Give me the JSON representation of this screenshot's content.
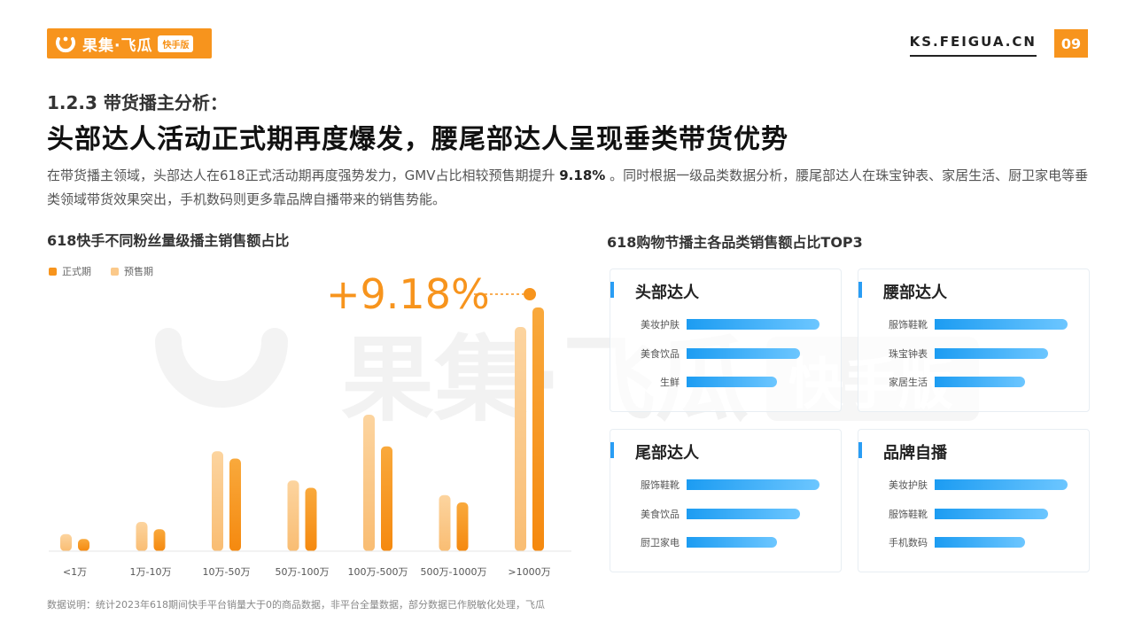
{
  "header": {
    "logo_text": "果集·飞瓜",
    "logo_badge": "快手版",
    "site": "KS.FEIGUA.CN",
    "page": "09"
  },
  "section": {
    "label": "1.2.3 带货播主分析：",
    "headline": "头部达人活动正式期再度爆发，腰尾部达人呈现垂类带货优势",
    "desc_part1": "在带货播主领域，头部达人在618正式活动期再度强势发力，GMV占比相较预售期提升",
    "desc_highlight": "9.18%",
    "desc_part2": "。同时根据一级品类数据分析，腰尾部达人在珠宝钟表、家居生活、厨卫家电等垂类领域带货效果突出，手机数码则更多靠品牌自播带来的销售势能。"
  },
  "chart_data": [
    {
      "type": "bar",
      "title": "618快手不同粉丝量级播主销售额占比",
      "categories": [
        "<1万",
        "1万-10万",
        "10万-50万",
        "50万-100万",
        "100万-500万",
        "500万-1000万",
        ">1000万"
      ],
      "series": [
        {
          "name": "正式期",
          "values": [
            5,
            9,
            38,
            26,
            43,
            20,
            100
          ]
        },
        {
          "name": "预售期",
          "values": [
            7,
            12,
            41,
            29,
            56,
            23,
            92
          ]
        }
      ],
      "annotation": "+9.18%",
      "legend": "top-left",
      "ylim": [
        0,
        100
      ],
      "colors": {
        "正式期": "#f7941d",
        "预售期": "#fbc98a"
      }
    },
    {
      "type": "bar",
      "title": "618购物节播主各品类销售额占比TOP3",
      "panels": [
        {
          "name": "头部达人",
          "categories": [
            "美妆护肤",
            "美食饮品",
            "生鲜"
          ],
          "values": [
            100,
            85,
            68
          ]
        },
        {
          "name": "腰部达人",
          "categories": [
            "服饰鞋靴",
            "珠宝钟表",
            "家居生活"
          ],
          "values": [
            100,
            85,
            68
          ]
        },
        {
          "name": "尾部达人",
          "categories": [
            "服饰鞋靴",
            "美食饮品",
            "厨卫家电"
          ],
          "values": [
            100,
            85,
            68
          ]
        },
        {
          "name": "品牌自播",
          "categories": [
            "美妆护肤",
            "服饰鞋靴",
            "手机数码"
          ],
          "values": [
            100,
            85,
            68
          ]
        }
      ]
    }
  ],
  "footnote": "数据说明：统计2023年618期间快手平台销量大于0的商品数据，非平台全量数据，部分数据已作脱敏化处理，飞瓜",
  "watermark": {
    "text": "果集·飞瓜",
    "badge": "快手版"
  }
}
